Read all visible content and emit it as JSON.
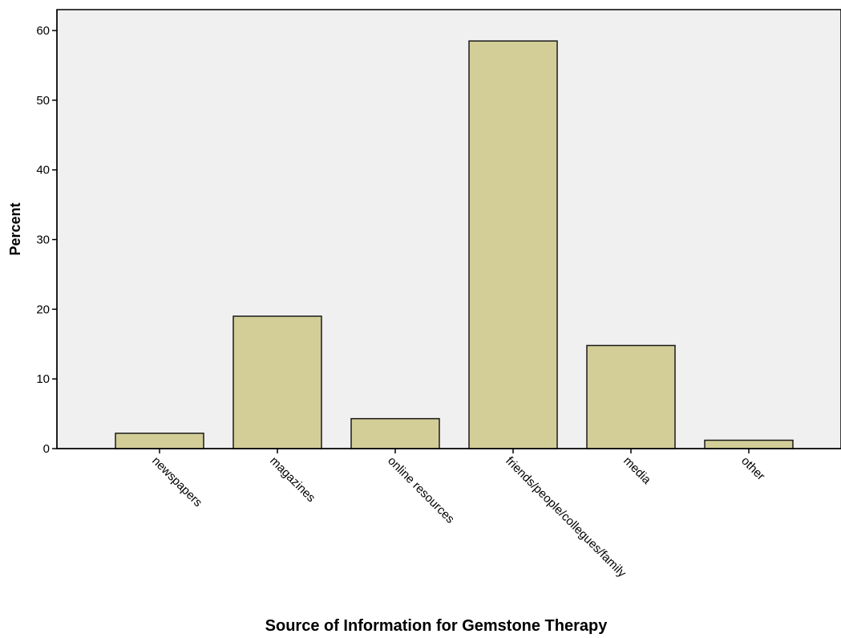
{
  "chart_data": {
    "type": "bar",
    "title": "",
    "xlabel": "Source of Information for Gemstone Therapy",
    "ylabel": "Percent",
    "categories": [
      "newspapers",
      "magazines",
      "online resources",
      "friends/people/collegues/family",
      "media",
      "other"
    ],
    "values": [
      2.2,
      19.0,
      4.3,
      58.5,
      14.8,
      1.2
    ],
    "ylim": [
      0,
      63
    ],
    "yticks": [
      "0",
      "10",
      "20",
      "30",
      "40",
      "50",
      "60"
    ],
    "grid": false,
    "legend": "none",
    "colors": {
      "plot_background": "#f0f0f0",
      "bar_fill": "#d3ce98",
      "bar_stroke": "#1a1a1a",
      "axis": "#000000"
    }
  }
}
